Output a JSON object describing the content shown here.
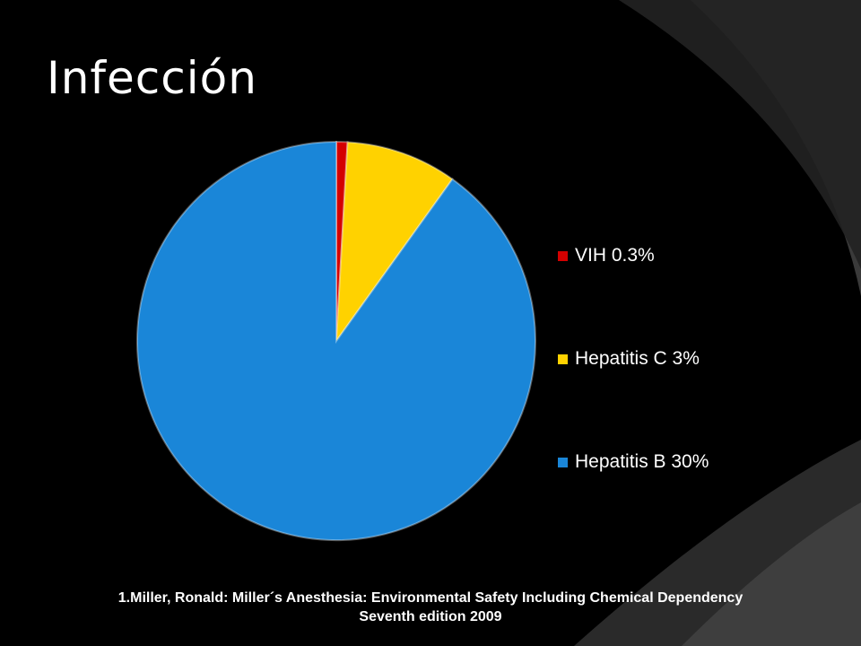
{
  "slide": {
    "title": "Infección",
    "footer_line1": "1.Miller, Ronald: Miller´s Anesthesia: Environmental Safety Including Chemical Dependency",
    "footer_line2": "Seventh edition 2009"
  },
  "colors": {
    "background": "#000000",
    "bg_shape_dark": "#2a2a2a",
    "bg_shape_light": "#3c3c3c"
  },
  "chart_data": {
    "type": "pie",
    "title": "",
    "legend_position": "right",
    "series": [
      {
        "name": "VIH 0.3%",
        "value": 0.3,
        "color": "#d40000"
      },
      {
        "name": "Hepatitis C 3%",
        "value": 3,
        "color": "#ffd200"
      },
      {
        "name": "Hepatitis B 30%",
        "value": 30,
        "color": "#1a86d8"
      }
    ]
  }
}
